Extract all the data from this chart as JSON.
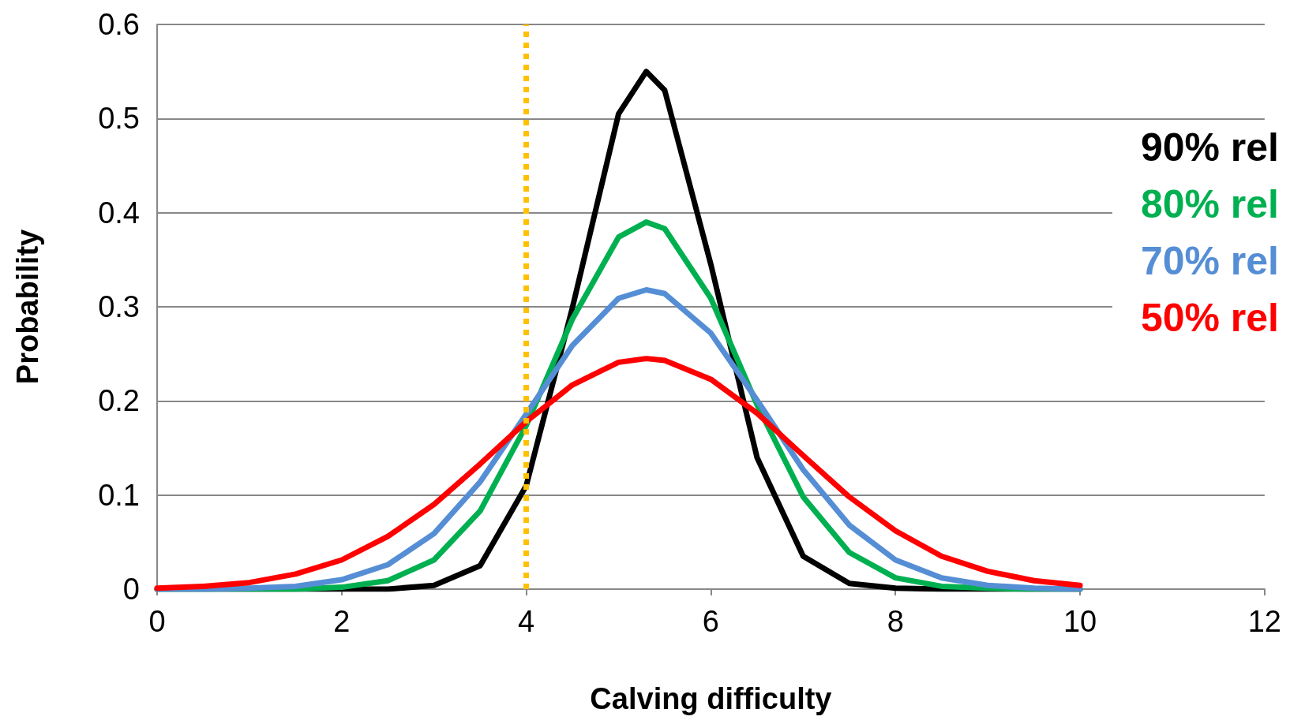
{
  "chart_data": {
    "type": "line",
    "xlabel": "Calving difficulty",
    "ylabel": "Probability",
    "x": [
      0,
      0.5,
      1,
      1.5,
      2,
      2.5,
      3,
      3.5,
      4,
      4.5,
      5,
      5.3,
      5.5,
      6,
      6.5,
      7,
      7.5,
      8,
      8.5,
      9,
      9.5,
      10
    ],
    "series": [
      {
        "name": "90% rel",
        "color": "#000000",
        "values": [
          0,
          0,
          0,
          0,
          0,
          0,
          0.004,
          0.025,
          0.11,
          0.299,
          0.505,
          0.55,
          0.53,
          0.345,
          0.14,
          0.035,
          0.006,
          0.001,
          0,
          0,
          0,
          0
        ]
      },
      {
        "name": "80% rel",
        "color": "#00b050",
        "values": [
          0,
          0,
          0,
          0,
          0.002,
          0.009,
          0.031,
          0.083,
          0.174,
          0.287,
          0.374,
          0.39,
          0.383,
          0.309,
          0.196,
          0.098,
          0.039,
          0.012,
          0.003,
          0.001,
          0,
          0
        ]
      },
      {
        "name": "70% rel",
        "color": "#558ed5",
        "values": [
          0,
          0,
          0.001,
          0.003,
          0.01,
          0.026,
          0.059,
          0.114,
          0.186,
          0.259,
          0.309,
          0.318,
          0.314,
          0.272,
          0.201,
          0.127,
          0.068,
          0.031,
          0.012,
          0.004,
          0.001,
          0
        ]
      },
      {
        "name": "50% rel",
        "color": "#ff0000",
        "values": [
          0.001,
          0.003,
          0.007,
          0.016,
          0.031,
          0.056,
          0.09,
          0.133,
          0.178,
          0.217,
          0.241,
          0.245,
          0.243,
          0.223,
          0.187,
          0.142,
          0.098,
          0.062,
          0.035,
          0.019,
          0.009,
          0.004
        ]
      }
    ],
    "xlim": [
      0,
      12
    ],
    "xticks": [
      0,
      2,
      4,
      6,
      8,
      10,
      12
    ],
    "ylim": [
      0,
      0.6
    ],
    "yticks": [
      0,
      0.1,
      0.2,
      0.3,
      0.4,
      0.5,
      0.6
    ],
    "grid": "y",
    "legend": "right",
    "marker": "none",
    "line_style": "solid",
    "ref_lines": [
      {
        "axis": "x",
        "value": 4,
        "color": "#ffc000",
        "line_style": "dotted"
      }
    ]
  }
}
